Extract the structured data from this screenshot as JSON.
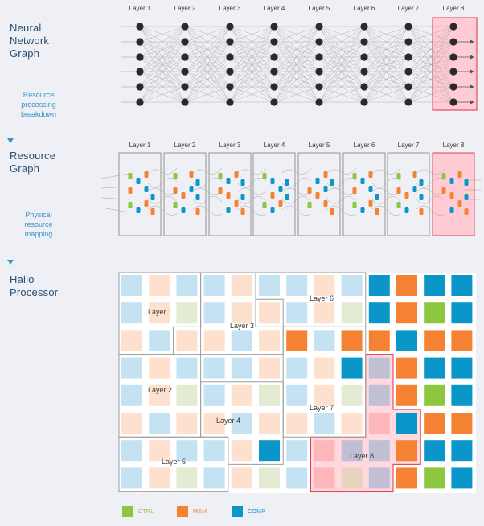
{
  "stages": [
    {
      "title": "Neural\nNetwork\nGraph"
    },
    {
      "title": "Resource\nGraph"
    },
    {
      "title": "Hailo\nProcessor"
    }
  ],
  "steps": [
    {
      "label": "Resource\nprocessing\nbreakdown"
    },
    {
      "label": "Physical\nresource\nmapping"
    }
  ],
  "layers": [
    "Layer 1",
    "Layer 2",
    "Layer 3",
    "Layer 4",
    "Layer 5",
    "Layer 6",
    "Layer 7",
    "Layer 8"
  ],
  "processor": {
    "region_labels": [
      "Layer 1",
      "Layer 2",
      "Layer 3",
      "Layer 4",
      "Layer 5",
      "Layer 6",
      "Layer 7",
      "Layer 8"
    ],
    "grid": [
      [
        "comp",
        "mem",
        "comp",
        "comp",
        "mem",
        "comp",
        "comp",
        "mem",
        "comp",
        "comp",
        "mem",
        "comp",
        "comp"
      ],
      [
        "comp",
        "mem",
        "ctrl",
        "comp",
        "mem",
        "mem",
        "comp",
        "mem",
        "ctrl",
        "comp",
        "mem",
        "ctrl",
        "comp"
      ],
      [
        "mem",
        "comp",
        "mem",
        "mem",
        "comp",
        "mem",
        "mem",
        "comp",
        "mem",
        "mem",
        "comp",
        "mem",
        "mem"
      ],
      [
        "comp",
        "mem",
        "comp",
        "comp",
        "comp",
        "mem",
        "comp",
        "mem",
        "comp",
        "comp",
        "mem",
        "comp",
        "comp"
      ],
      [
        "comp",
        "mem",
        "ctrl",
        "comp",
        "mem",
        "ctrl",
        "comp",
        "mem",
        "ctrl",
        "comp",
        "mem",
        "ctrl",
        "comp"
      ],
      [
        "mem",
        "comp",
        "mem",
        "mem",
        "comp",
        "mem",
        "mem",
        "comp",
        "mem",
        "mem",
        "comp",
        "mem",
        "mem"
      ],
      [
        "comp",
        "mem",
        "comp",
        "comp",
        "mem",
        "comp",
        "comp",
        "mem",
        "comp",
        "comp",
        "mem",
        "comp",
        "comp"
      ],
      [
        "comp",
        "mem",
        "ctrl",
        "comp",
        "mem",
        "ctrl",
        "comp",
        "mem",
        "ctrl",
        "comp",
        "mem",
        "ctrl",
        "comp"
      ]
    ],
    "active_cells": [
      [
        0,
        9
      ],
      [
        0,
        10
      ],
      [
        0,
        11
      ],
      [
        0,
        12
      ],
      [
        1,
        9
      ],
      [
        1,
        10
      ],
      [
        1,
        11
      ],
      [
        1,
        12
      ],
      [
        2,
        6
      ],
      [
        2,
        8
      ],
      [
        2,
        9
      ],
      [
        2,
        10
      ],
      [
        2,
        11
      ],
      [
        2,
        12
      ],
      [
        3,
        8
      ],
      [
        3,
        10
      ],
      [
        3,
        11
      ],
      [
        3,
        12
      ],
      [
        4,
        10
      ],
      [
        4,
        11
      ],
      [
        4,
        12
      ],
      [
        5,
        10
      ],
      [
        5,
        11
      ],
      [
        5,
        12
      ],
      [
        6,
        5
      ],
      [
        6,
        10
      ],
      [
        6,
        11
      ],
      [
        6,
        12
      ],
      [
        7,
        10
      ],
      [
        7,
        11
      ],
      [
        7,
        12
      ]
    ],
    "highlight_cells": [
      [
        3,
        9
      ],
      [
        4,
        9
      ],
      [
        5,
        9
      ],
      [
        5,
        10
      ],
      [
        6,
        7
      ],
      [
        6,
        8
      ],
      [
        6,
        9
      ],
      [
        6,
        10
      ],
      [
        7,
        7
      ],
      [
        7,
        8
      ],
      [
        7,
        9
      ]
    ]
  },
  "legend": [
    {
      "label": "CTRL",
      "color": "#8dc63f"
    },
    {
      "label": "MEM",
      "color": "#f58233"
    },
    {
      "label": "COMP",
      "color": "#0a96c8"
    }
  ],
  "colors": {
    "ctrl": "#8dc63f",
    "mem": "#f58233",
    "comp": "#0a96c8",
    "highlight": "#ffccd5",
    "highlight_border": "#e03040"
  }
}
